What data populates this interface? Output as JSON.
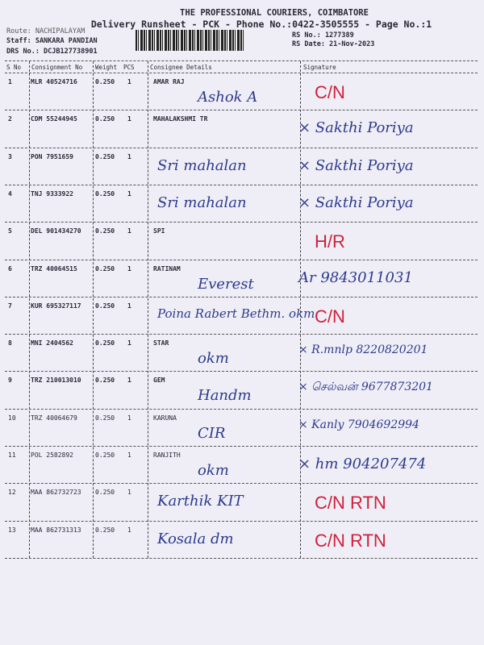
{
  "header": {
    "company": "THE PROFESSIONAL COURIERS, COIMBATORE",
    "subtitle": "Delivery Runsheet - PCK - Phone No.:0422-3505555 - Page No.:1",
    "route": "Route: NACHIPALAYAM",
    "staff": "Staff: SANKARA PANDIAN",
    "drs_no": "DRS No.: DCJB127738901",
    "rs_no": "RS No.: 1277389",
    "rs_date": "RS Date: 21-Nov-2023"
  },
  "table": {
    "columns": [
      "S No",
      "Consignment No",
      "Weight",
      "PCS",
      "Consignee Details",
      "Signature"
    ],
    "rows": [
      {
        "sno": "1",
        "cn": "MLR 40524716",
        "weight": "0.250",
        "pcs": "1",
        "consignee": "AMAR RAJ",
        "hw_consignee": "Ashok A",
        "hw_sig": "C/N",
        "sig_red": true
      },
      {
        "sno": "2",
        "cn": "CDM 55244945",
        "weight": "0.250",
        "pcs": "1",
        "consignee": "MAHALAKSHMI TR",
        "hw_consignee": "",
        "hw_sig": "× Sakthi Poriya",
        "sig_red": false
      },
      {
        "sno": "3",
        "cn": "PON 7951659",
        "weight": "0.250",
        "pcs": "1",
        "consignee": "",
        "hw_consignee": "Sri mahalan",
        "hw_sig": "× Sakthi Poriya",
        "sig_red": false
      },
      {
        "sno": "4",
        "cn": "TNJ 9333922",
        "weight": "0.250",
        "pcs": "1",
        "consignee": "",
        "hw_consignee": "Sri mahalan",
        "hw_sig": "× Sakthi Poriya",
        "sig_red": false
      },
      {
        "sno": "5",
        "cn": "DEL 901434270",
        "weight": "0.250",
        "pcs": "1",
        "consignee": "SPI",
        "hw_consignee": "",
        "hw_sig": "H/R",
        "sig_red": true
      },
      {
        "sno": "6",
        "cn": "TRZ 40064515",
        "weight": "0.250",
        "pcs": "1",
        "consignee": "RATINAM",
        "hw_consignee": "Everest",
        "hw_sig": "Ar 9843011031",
        "sig_red": false
      },
      {
        "sno": "7",
        "cn": "KUR 695327117",
        "weight": "0.250",
        "pcs": "1",
        "consignee": "",
        "hw_consignee": "Poina Rabert Bethm. okm",
        "hw_sig": "C/N",
        "sig_red": true
      },
      {
        "sno": "8",
        "cn": "MNI 2404562",
        "weight": "0.250",
        "pcs": "1",
        "consignee": "STAR",
        "hw_consignee": "okm",
        "hw_sig": "× R.mnlp 8220820201",
        "sig_red": false
      },
      {
        "sno": "9",
        "cn": "TRZ 210013010",
        "weight": "0.250",
        "pcs": "1",
        "consignee": "GEM",
        "hw_consignee": "Handm",
        "hw_sig": "× செல்வன் 9677873201",
        "sig_red": false
      },
      {
        "sno": "10",
        "cn": "TRZ 40064679",
        "weight": "0.250",
        "pcs": "1",
        "consignee": "KARUNA",
        "hw_consignee": "CIR",
        "hw_sig": "× Kanly 7904692994",
        "sig_red": false
      },
      {
        "sno": "11",
        "cn": "POL 2582892",
        "weight": "0.250",
        "pcs": "1",
        "consignee": "RANJITH",
        "hw_consignee": "okm",
        "hw_sig": "× hm 904207474",
        "sig_red": false
      },
      {
        "sno": "12",
        "cn": "MAA 862732723",
        "weight": "0.250",
        "pcs": "1",
        "consignee": "",
        "hw_consignee": "Karthik KIT",
        "hw_sig": "C/N RTN",
        "sig_red": true
      },
      {
        "sno": "13",
        "cn": "MAA 862731313",
        "weight": "0.250",
        "pcs": "1",
        "consignee": "",
        "hw_consignee": "Kosala dm",
        "hw_sig": "C/N RTN",
        "sig_red": true
      }
    ]
  },
  "colors": {
    "paper": "#efeef7",
    "ink_blue": "#2d3a8c",
    "ink_red": "#d0203a"
  }
}
